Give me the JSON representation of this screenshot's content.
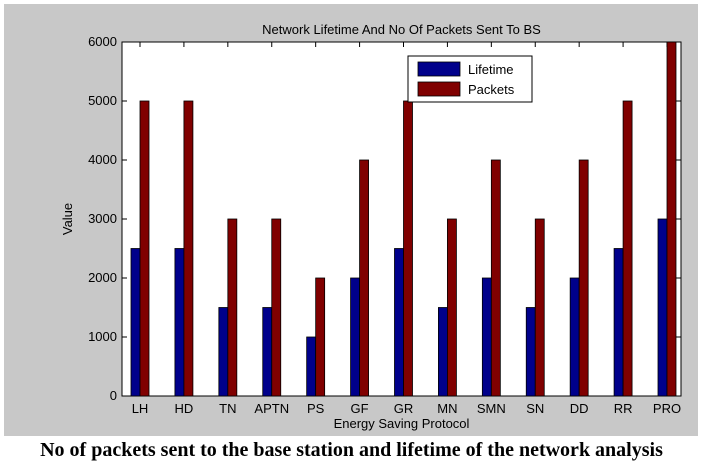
{
  "caption": "No of packets sent to the base station and lifetime of the network analysis",
  "chart_data": {
    "type": "bar",
    "title": "Network Lifetime And No Of Packets Sent To BS",
    "xlabel": "Energy Saving Protocol",
    "ylabel": "Value",
    "ylim": [
      0,
      6000
    ],
    "yticks": [
      0,
      1000,
      2000,
      3000,
      4000,
      5000,
      6000
    ],
    "categories": [
      "LH",
      "HD",
      "TN",
      "APTN",
      "PS",
      "GF",
      "GR",
      "MN",
      "SMN",
      "SN",
      "DD",
      "RR",
      "PRO"
    ],
    "series": [
      {
        "name": "Lifetime",
        "color": "#00008b",
        "values": [
          2500,
          2500,
          1500,
          1500,
          1000,
          2000,
          2500,
          1500,
          2000,
          1500,
          2000,
          2500,
          3000
        ]
      },
      {
        "name": "Packets",
        "color": "#800000",
        "values": [
          5000,
          5000,
          3000,
          3000,
          2000,
          4000,
          5000,
          3000,
          4000,
          3000,
          4000,
          5000,
          6000
        ]
      }
    ],
    "legend_position": "top-right",
    "grid": false
  }
}
